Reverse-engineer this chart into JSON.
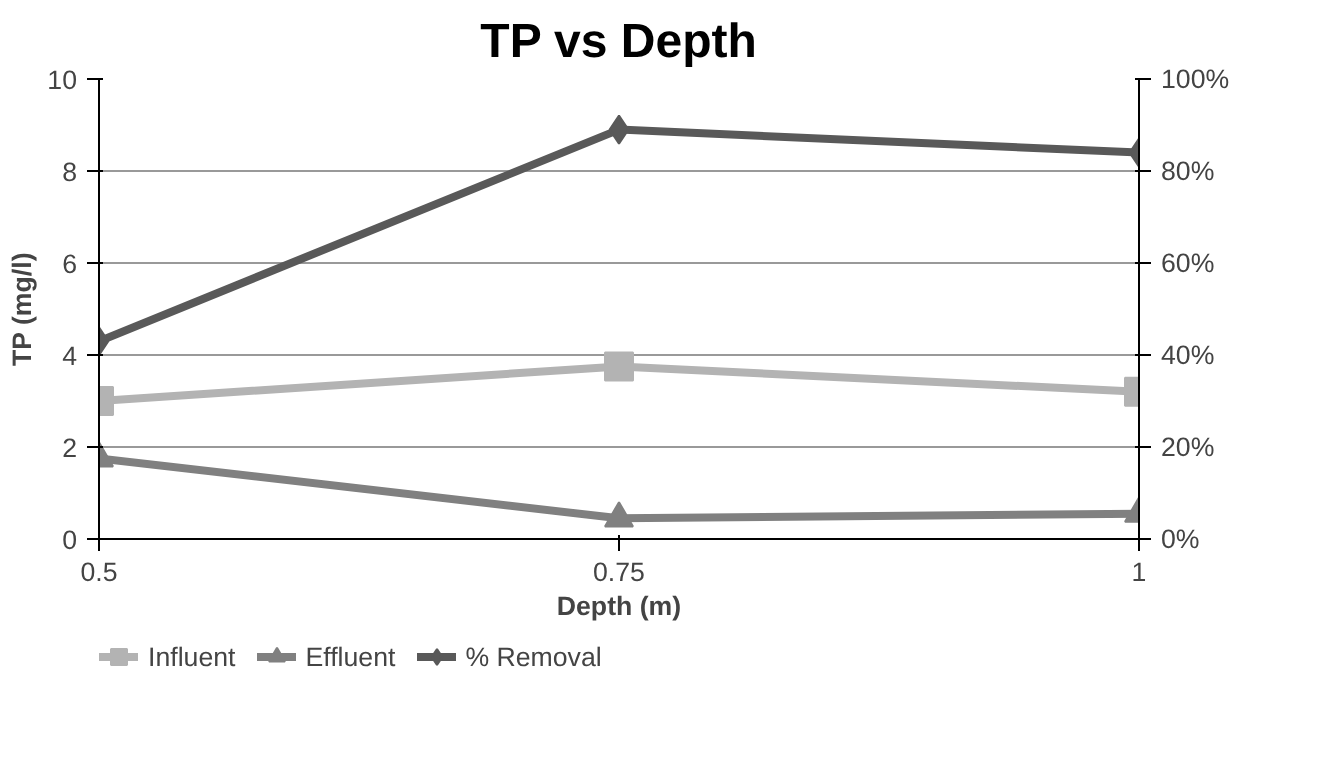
{
  "chart_data": {
    "type": "line",
    "title": "TP vs Depth",
    "xlabel": "Depth (m)",
    "ylabel": "TP (mg/l)",
    "categories": [
      "0.5",
      "0.75",
      "1"
    ],
    "ylim": [
      0,
      10
    ],
    "yticks": [
      0,
      2,
      4,
      6,
      8,
      10
    ],
    "y2lim": [
      0,
      100
    ],
    "y2ticks": [
      {
        "value": 0,
        "label": "0%"
      },
      {
        "value": 20,
        "label": "20%"
      },
      {
        "value": 40,
        "label": "40%"
      },
      {
        "value": 60,
        "label": "60%"
      },
      {
        "value": 80,
        "label": "80%"
      },
      {
        "value": 100,
        "label": "100%"
      }
    ],
    "grid": "y",
    "legend": "bottom",
    "line_style": "solid",
    "series": [
      {
        "name": "Influent",
        "color": "#b3b3b3",
        "marker": "square",
        "values": [
          3.0,
          3.75,
          3.2
        ]
      },
      {
        "name": "Effluent",
        "color": "#808080",
        "marker": "triangle",
        "values": [
          1.75,
          0.45,
          0.55
        ]
      },
      {
        "name": "% Removal",
        "color": "#595959",
        "marker": "diamond",
        "axis": "y2",
        "values": [
          43,
          89,
          84
        ]
      }
    ]
  }
}
